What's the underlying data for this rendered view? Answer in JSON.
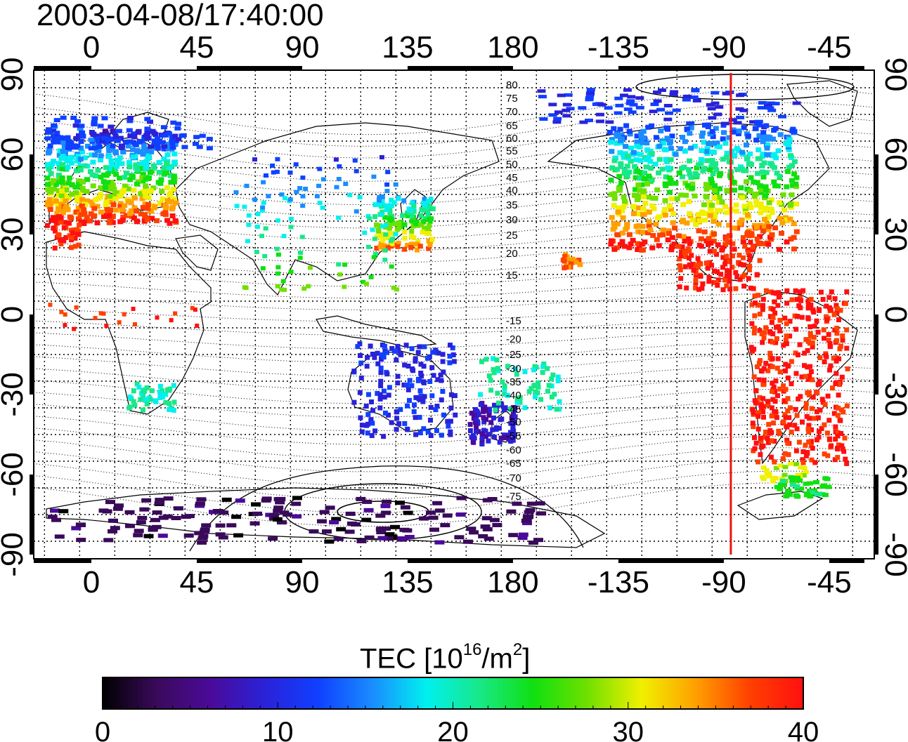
{
  "title": "2003-04-08/17:40:00",
  "map": {
    "top_lon_ticks": [
      "0",
      "45",
      "90",
      "135",
      "180",
      "-135",
      "-90",
      "-45"
    ],
    "bottom_lon_ticks": [
      "0",
      "45",
      "90",
      "135",
      "180",
      "-135",
      "-90",
      "-45"
    ],
    "left_lat_ticks": [
      "90",
      "60",
      "30",
      "0",
      "-30",
      "-60",
      "-90"
    ],
    "right_lat_ticks": [
      "90",
      "60",
      "30",
      "0",
      "-30",
      "-60",
      "-90"
    ],
    "magnetic_lat_labels": [
      "80",
      "75",
      "70",
      "65",
      "60",
      "55",
      "50",
      "45",
      "40",
      "35",
      "30",
      "25",
      "20",
      "15",
      "-15",
      "-20",
      "-25",
      "-30",
      "-35",
      "-40",
      "-45",
      "-50",
      "-55",
      "-60",
      "-65",
      "-70",
      "-75"
    ],
    "meridian_marker_lon": -87,
    "meridian_marker_color": "#ee1111"
  },
  "colorbar": {
    "title_prefix": "TEC  [10",
    "title_exp1": "16",
    "title_mid": "/m",
    "title_exp2": "2",
    "title_suffix": "]",
    "ticks": [
      "0",
      "10",
      "20",
      "30",
      "40"
    ],
    "range": [
      0,
      40
    ],
    "colors": [
      "#000000",
      "#3a0a5a",
      "#4b0a9a",
      "#2a22d8",
      "#1040ff",
      "#1a8cff",
      "#00f0f0",
      "#18e888",
      "#10e010",
      "#70e000",
      "#f0f000",
      "#ffa000",
      "#ff4000",
      "#ff1010"
    ]
  }
}
